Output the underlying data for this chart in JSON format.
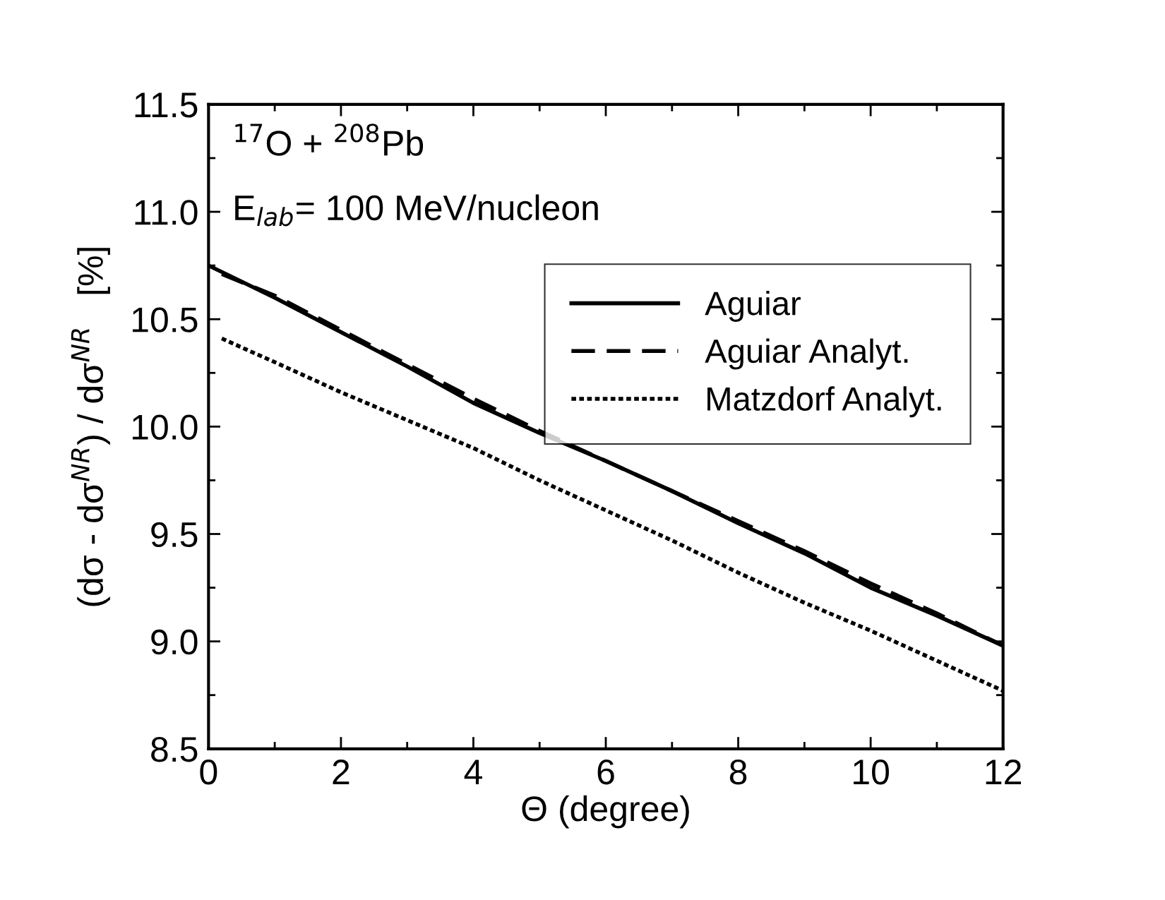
{
  "chart_data": {
    "type": "line",
    "xlabel": "Θ (degree)",
    "ylabel": "(dσ - dσ$^{NR}$) / dσ$^{NR}$   [%]",
    "annotations": [
      "$^{17}$O + $^{208}$Pb",
      "E$_{lab}$= 100 MeV/nucleon"
    ],
    "xlim": [
      0,
      12
    ],
    "ylim": [
      8.5,
      11.5
    ],
    "xticks": [
      0,
      {
        "value": 1,
        "label": null
      },
      2,
      {
        "value": 3,
        "label": null
      },
      4,
      {
        "value": 5,
        "label": null
      },
      6,
      {
        "value": 7,
        "label": null
      },
      8,
      {
        "value": 9,
        "label": null
      },
      10,
      {
        "value": 11,
        "label": null
      },
      12
    ],
    "yticks": [
      {
        "value": 8.5,
        "label": "8.5"
      },
      {
        "value": 8.75,
        "label": null
      },
      {
        "value": 9.0,
        "label": "9.0"
      },
      {
        "value": 9.25,
        "label": null
      },
      {
        "value": 9.5,
        "label": "9.5"
      },
      {
        "value": 9.75,
        "label": null
      },
      {
        "value": 10.0,
        "label": "10.0"
      },
      {
        "value": 10.25,
        "label": null
      },
      {
        "value": 10.5,
        "label": "10.5"
      },
      {
        "value": 10.75,
        "label": null
      },
      {
        "value": 11.0,
        "label": "11.0"
      },
      {
        "value": 11.25,
        "label": null
      },
      {
        "value": 11.5,
        "label": "11.5"
      }
    ],
    "grid": false,
    "legend": "top right",
    "series": [
      {
        "name": "Aguiar",
        "color": "#000000",
        "line_style": "solid",
        "x": [
          0,
          1,
          2,
          3,
          4,
          5,
          6,
          7,
          8,
          9,
          10,
          11,
          12
        ],
        "values": [
          10.75,
          10.6,
          10.44,
          10.28,
          10.11,
          9.97,
          9.84,
          9.7,
          9.55,
          9.41,
          9.25,
          9.12,
          8.98
        ]
      },
      {
        "name": "Aguiar Analyt.",
        "color": "#000000",
        "line_style": "dashed",
        "x": [
          0.2,
          1,
          2,
          3,
          4,
          5,
          6,
          7,
          8,
          9,
          10,
          11,
          12
        ],
        "values": [
          10.71,
          10.61,
          10.45,
          10.29,
          10.13,
          9.98,
          9.84,
          9.7,
          9.56,
          9.42,
          9.27,
          9.13,
          8.98
        ]
      },
      {
        "name": "Matzdorf Analyt.",
        "color": "#000000",
        "line_style": "dotted",
        "x": [
          0.2,
          1,
          2,
          3,
          4,
          5,
          6,
          7,
          8,
          9,
          10,
          11,
          12
        ],
        "values": [
          10.41,
          10.3,
          10.16,
          10.03,
          9.9,
          9.75,
          9.61,
          9.47,
          9.32,
          9.18,
          9.05,
          8.91,
          8.77
        ]
      }
    ]
  }
}
